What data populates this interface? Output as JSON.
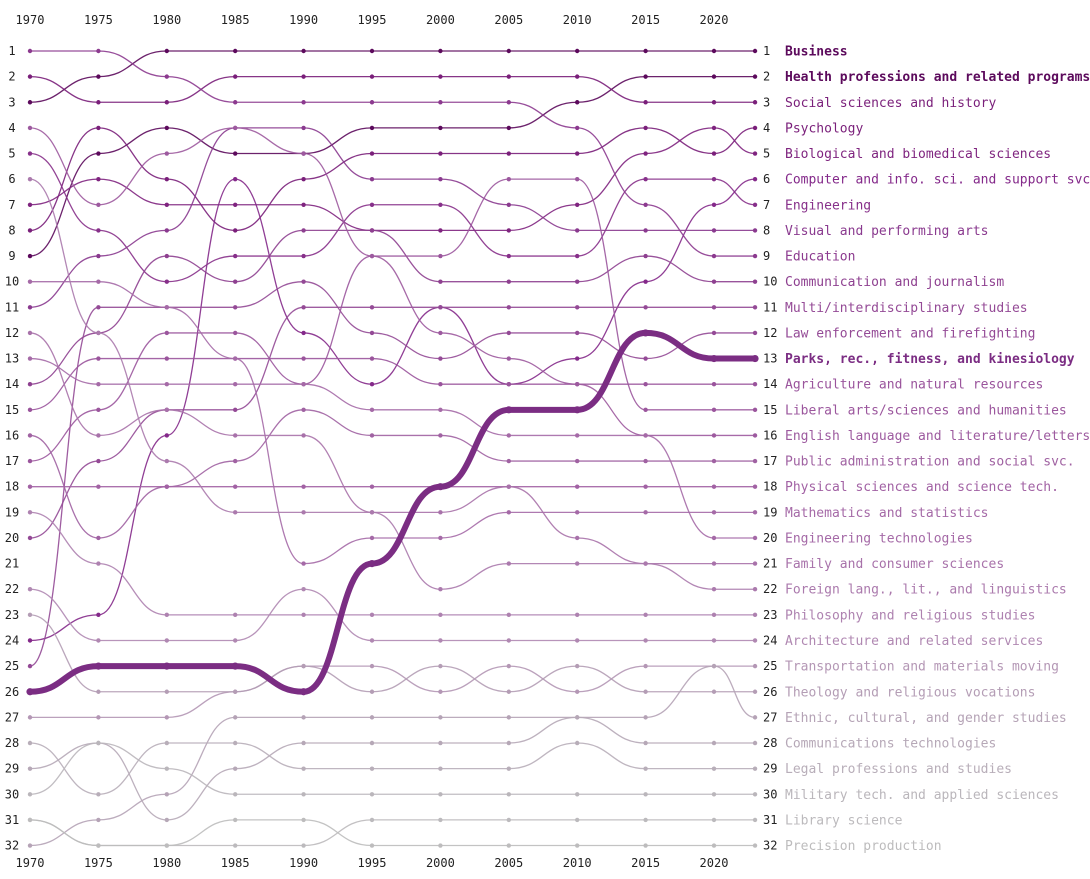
{
  "chart_data": {
    "type": "bump",
    "title": "",
    "xlabel": "",
    "ylabel": "",
    "x": [
      1970,
      1975,
      1980,
      1985,
      1990,
      1995,
      2000,
      2005,
      2010,
      2015,
      2020,
      2023
    ],
    "x_tick_labels": [
      "1970",
      "1975",
      "1980",
      "1985",
      "1990",
      "1995",
      "2000",
      "2005",
      "2010",
      "2015",
      "2020"
    ],
    "rank_range": [
      1,
      32
    ],
    "highlighted_series": "Parks, rec., fitness, and kinesiology",
    "series": [
      {
        "name": "Business",
        "ranks": [
          3,
          2,
          1,
          1,
          1,
          1,
          1,
          1,
          1,
          1,
          1,
          1
        ],
        "color": "#5c0a5c"
      },
      {
        "name": "Health professions and related programs",
        "ranks": [
          9,
          5,
          4,
          5,
          5,
          4,
          4,
          4,
          3,
          2,
          2,
          2
        ],
        "color": "#5c0a5c"
      },
      {
        "name": "Social sciences and history",
        "ranks": [
          2,
          3,
          3,
          2,
          2,
          2,
          2,
          2,
          2,
          3,
          3,
          3
        ],
        "color": "#7a1f7a"
      },
      {
        "name": "Psychology",
        "ranks": [
          8,
          4,
          6,
          8,
          6,
          5,
          5,
          5,
          5,
          4,
          5,
          4
        ],
        "color": "#7a1f7a"
      },
      {
        "name": "Biological and biomedical sciences",
        "ranks": [
          7,
          6,
          7,
          7,
          7,
          8,
          8,
          8,
          7,
          5,
          4,
          5
        ],
        "color": "#7f247f"
      },
      {
        "name": "Computer and info. sci. and support svc.",
        "ranks": [
          24,
          23,
          16,
          6,
          12,
          14,
          11,
          14,
          13,
          10,
          7,
          6
        ],
        "color": "#84298a"
      },
      {
        "name": "Engineering",
        "ranks": [
          5,
          8,
          10,
          9,
          9,
          7,
          7,
          9,
          9,
          6,
          6,
          7
        ],
        "color": "#87308a"
      },
      {
        "name": "Visual and performing arts",
        "ranks": [
          11,
          9,
          8,
          4,
          4,
          6,
          6,
          7,
          8,
          8,
          8,
          8
        ],
        "color": "#8a3a8f"
      },
      {
        "name": "Education",
        "ranks": [
          1,
          1,
          2,
          3,
          3,
          3,
          3,
          3,
          4,
          7,
          9,
          9
        ],
        "color": "#8c3a8f"
      },
      {
        "name": "Communication and journalism",
        "ranks": [
          14,
          12,
          9,
          10,
          8,
          8,
          10,
          10,
          10,
          9,
          10,
          10
        ],
        "color": "#8e4090"
      },
      {
        "name": "Multi/interdisciplinary studies",
        "ranks": [
          20,
          17,
          15,
          15,
          11,
          11,
          11,
          11,
          11,
          11,
          11,
          11
        ],
        "color": "#944a96"
      },
      {
        "name": "Law enforcement and firefighting",
        "ranks": [
          25,
          11,
          11,
          11,
          10,
          12,
          13,
          12,
          12,
          13,
          12,
          12
        ],
        "color": "#944a96"
      },
      {
        "name": "Parks, rec., fitness, and kinesiology",
        "ranks": [
          26,
          25,
          25,
          25,
          26,
          21,
          18,
          15,
          15,
          12,
          13,
          13
        ],
        "color": "#7b2d83"
      },
      {
        "name": "Agriculture and natural resources",
        "ranks": [
          15,
          13,
          13,
          13,
          13,
          13,
          14,
          14,
          14,
          14,
          14,
          14
        ],
        "color": "#9a549c"
      },
      {
        "name": "Liberal arts/sciences and humanities",
        "ranks": [
          17,
          15,
          12,
          12,
          14,
          9,
          9,
          6,
          6,
          15,
          15,
          15
        ],
        "color": "#9b569d"
      },
      {
        "name": "English language and literature/letters",
        "ranks": [
          4,
          7,
          5,
          4,
          5,
          9,
          12,
          13,
          14,
          16,
          16,
          16
        ],
        "color": "#9d5a9f"
      },
      {
        "name": "Public administration and social svc.",
        "ranks": [
          16,
          20,
          18,
          17,
          15,
          16,
          16,
          17,
          17,
          17,
          17,
          17
        ],
        "color": "#a062a2"
      },
      {
        "name": "Physical sciences and science tech.",
        "ranks": [
          18,
          18,
          18,
          18,
          18,
          18,
          18,
          18,
          18,
          18,
          18,
          18
        ],
        "color": "#a262a4"
      },
      {
        "name": "Mathematics and statistics",
        "ranks": [
          10,
          10,
          11,
          13,
          21,
          20,
          20,
          19,
          19,
          19,
          19,
          19
        ],
        "color": "#a56aa7"
      },
      {
        "name": "Engineering technologies",
        "ranks": [
          13,
          14,
          14,
          14,
          14,
          15,
          15,
          16,
          16,
          16,
          20,
          20
        ],
        "color": "#a56aa7"
      },
      {
        "name": "Family and consumer sciences",
        "ranks": [
          12,
          16,
          15,
          16,
          16,
          19,
          19,
          18,
          20,
          21,
          21,
          21
        ],
        "color": "#a872aa"
      },
      {
        "name": "Foreign lang., lit., and linguistics",
        "ranks": [
          6,
          12,
          17,
          19,
          19,
          19,
          22,
          21,
          21,
          21,
          22,
          22
        ],
        "color": "#ab7aad"
      },
      {
        "name": "Philosophy and religious studies",
        "ranks": [
          19,
          21,
          23,
          23,
          23,
          23,
          23,
          23,
          23,
          23,
          23,
          23
        ],
        "color": "#ae82b0"
      },
      {
        "name": "Architecture and related services",
        "ranks": [
          22,
          24,
          24,
          24,
          22,
          24,
          24,
          24,
          24,
          24,
          24,
          24
        ],
        "color": "#b088b2"
      },
      {
        "name": "Transportation and materials moving",
        "ranks": [
          27,
          27,
          27,
          26,
          25,
          25,
          26,
          25,
          26,
          25,
          25,
          25
        ],
        "color": "#b497b5"
      },
      {
        "name": "Theology and religious vocations",
        "ranks": [
          23,
          26,
          26,
          26,
          25,
          26,
          25,
          26,
          25,
          26,
          26,
          26
        ],
        "color": "#b49db5"
      },
      {
        "name": "Ethnic, cultural, and gender studies",
        "ranks": [
          32,
          31,
          30,
          27,
          27,
          27,
          27,
          27,
          27,
          27,
          25,
          27
        ],
        "color": "#b5a3b6"
      },
      {
        "name": "Communications technologies",
        "ranks": [
          29,
          28,
          31,
          29,
          28,
          28,
          28,
          28,
          27,
          28,
          28,
          28
        ],
        "color": "#b6a8b7"
      },
      {
        "name": "Legal professions and studies",
        "ranks": [
          28,
          30,
          28,
          28,
          29,
          29,
          29,
          29,
          28,
          29,
          29,
          29
        ],
        "color": "#b8aeb9"
      },
      {
        "name": "Military tech. and applied sciences",
        "ranks": [
          30,
          28,
          29,
          30,
          30,
          30,
          30,
          30,
          30,
          30,
          30,
          30
        ],
        "color": "#bab6bb"
      },
      {
        "name": "Library science",
        "ranks": [
          31,
          32,
          32,
          32,
          32,
          31,
          31,
          31,
          31,
          31,
          31,
          31
        ],
        "color": "#bcbabd"
      },
      {
        "name": "Precision production",
        "ranks": [
          31,
          32,
          32,
          31,
          31,
          32,
          32,
          32,
          32,
          32,
          32,
          32
        ],
        "color": "#bdbcbd"
      }
    ]
  }
}
